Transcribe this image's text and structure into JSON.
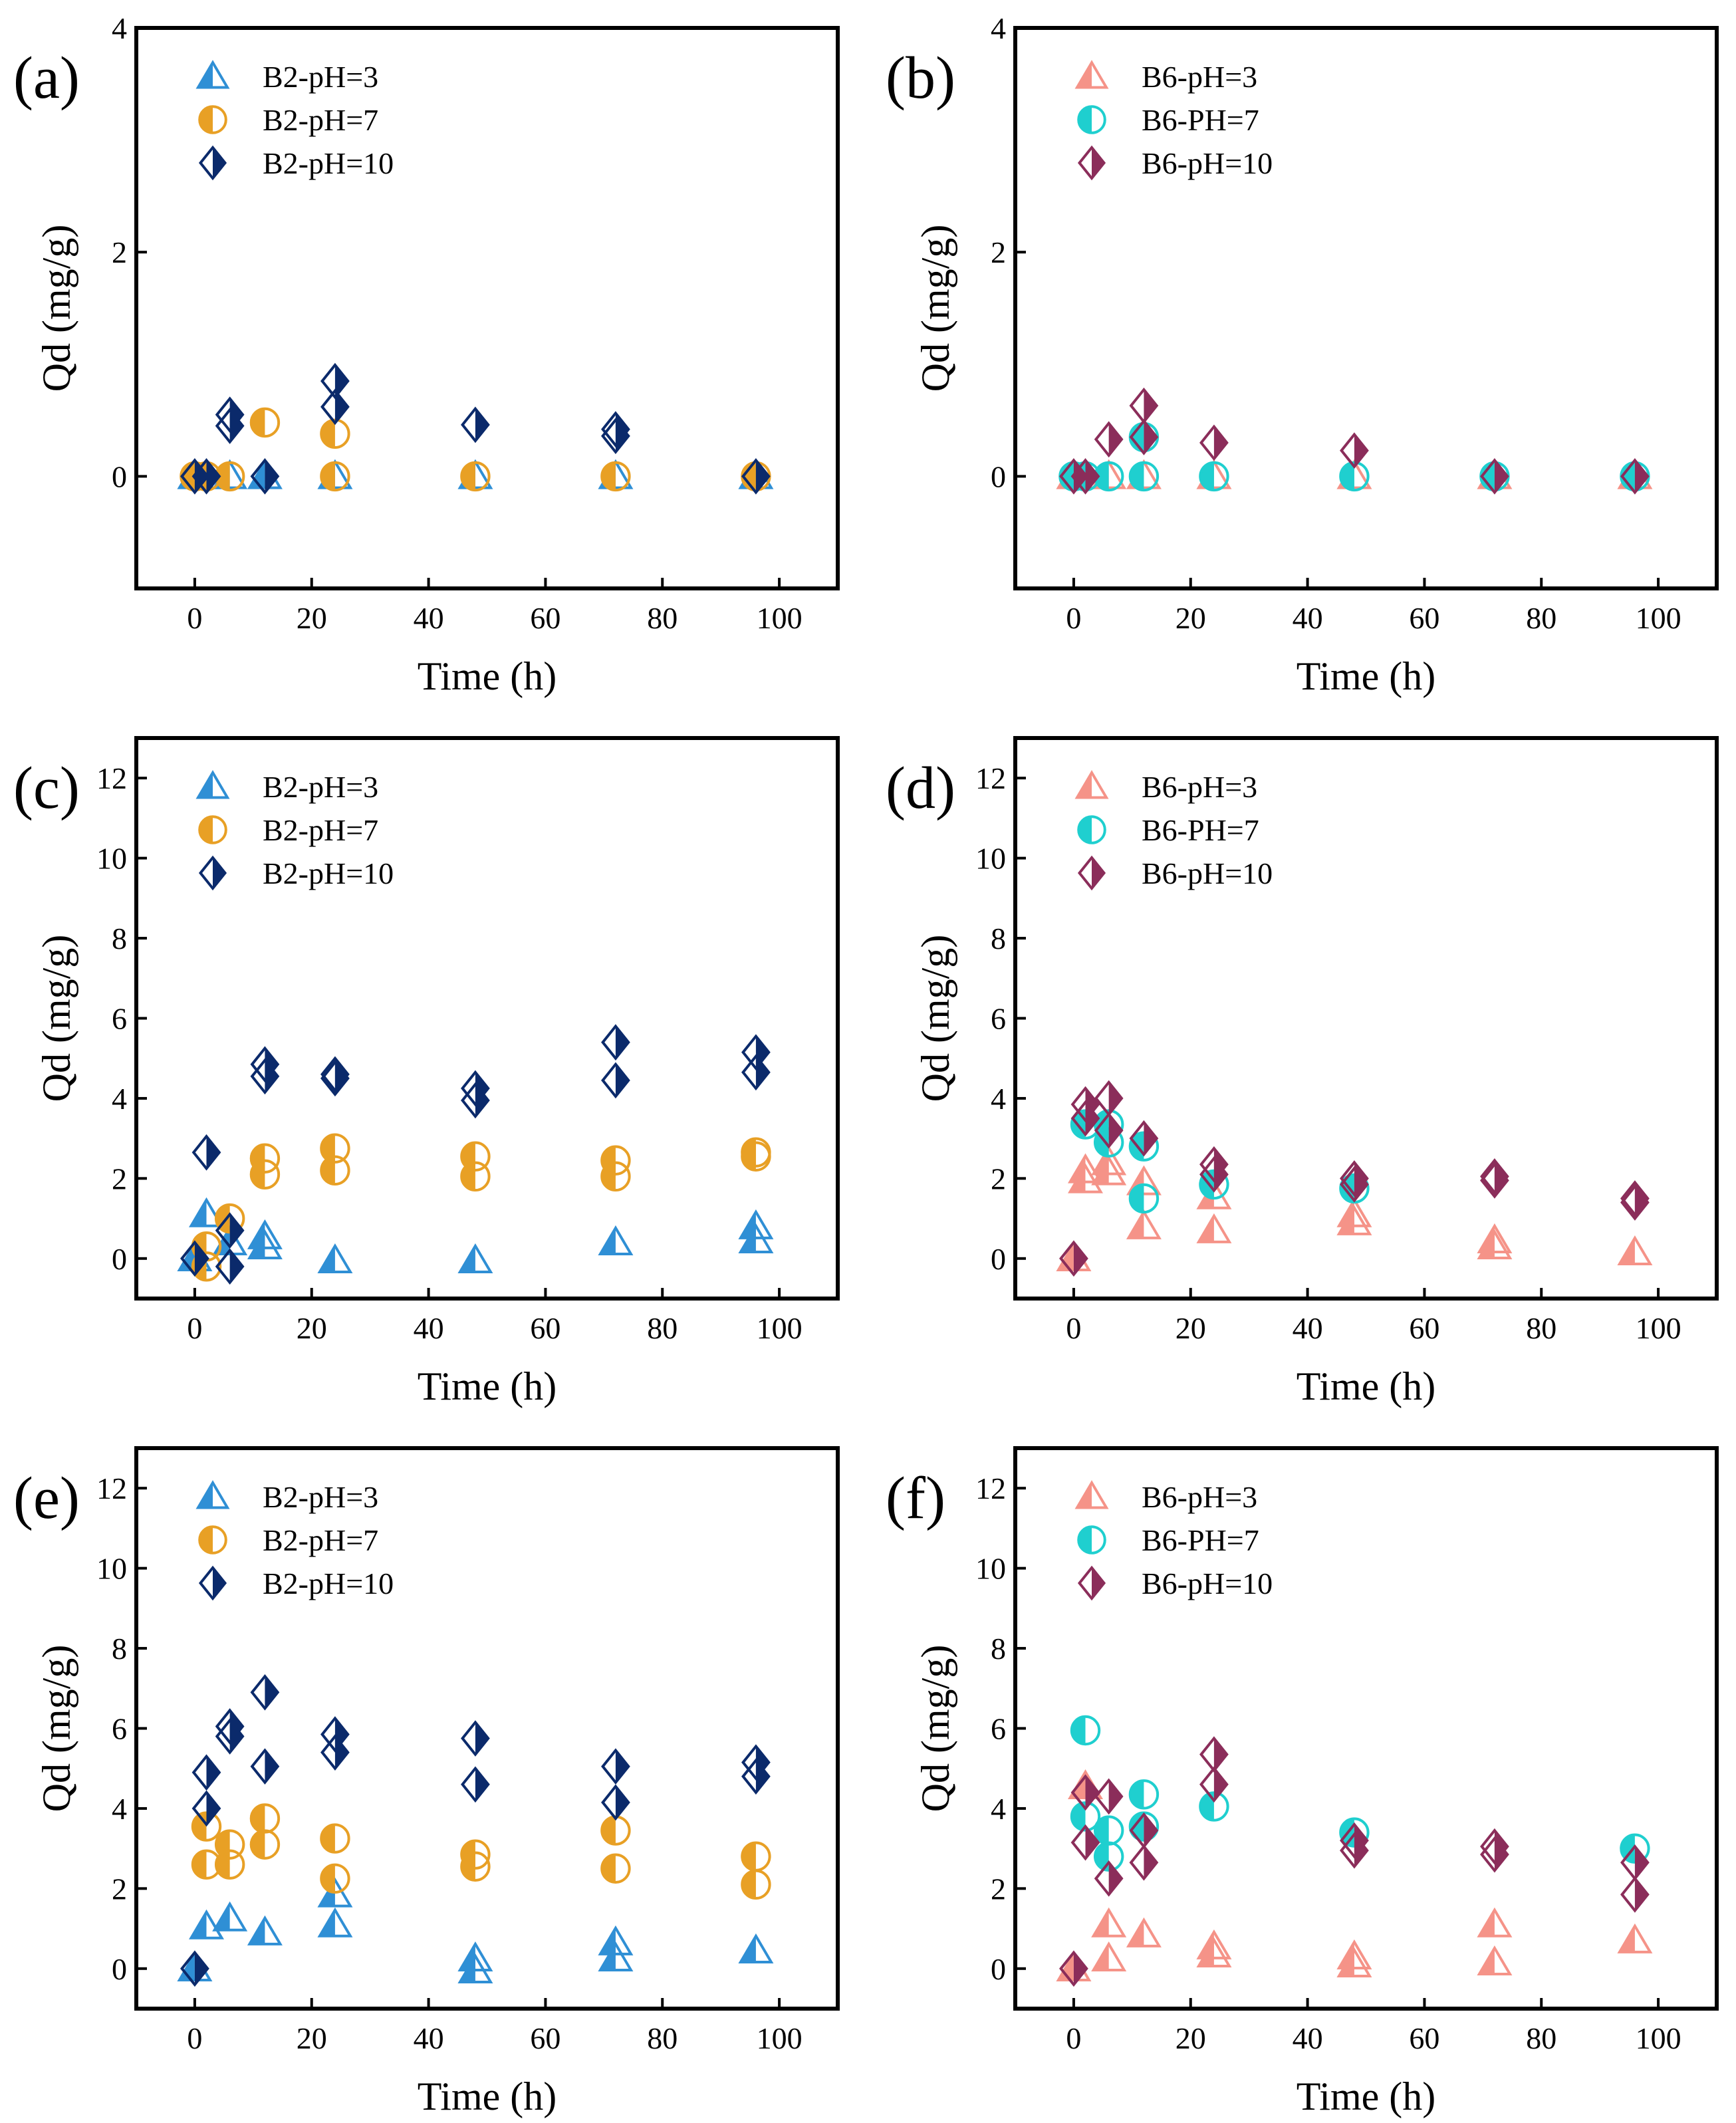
{
  "figure": {
    "description_free": true
  },
  "colors": {
    "b2_ph3": "#2F8FD5",
    "b2_ph7": "#E8A025",
    "b2_ph10": "#0B2A6B",
    "b6_ph3": "#F59388",
    "b6_ph7": "#1FCFCF",
    "b6_ph10": "#8B2D5A"
  },
  "chart_data": [
    {
      "type": "scatter",
      "panel_label": "(a)",
      "xlabel": "Time (h)",
      "ylabel": "Qd (mg/g)",
      "xlim": [
        -10,
        110
      ],
      "ylim": [
        -1,
        4
      ],
      "xticks": [
        0,
        20,
        40,
        60,
        80,
        100
      ],
      "yticks": [
        0,
        2,
        4
      ],
      "tick_labels_x": [
        "0",
        "20",
        "40",
        "60",
        "80",
        "100"
      ],
      "tick_labels_y": [
        "0",
        "2",
        "4"
      ],
      "series": [
        {
          "name": "B2-pH=3",
          "marker": "triangle",
          "color_key": "b2_ph3",
          "x": [
            0,
            2,
            6,
            12,
            24,
            48,
            72,
            96
          ],
          "y": [
            0,
            0,
            0,
            0,
            0,
            0,
            0,
            0
          ]
        },
        {
          "name": "B2-pH=7",
          "marker": "circle",
          "color_key": "b2_ph7",
          "x": [
            0,
            2,
            6,
            12,
            24,
            24,
            48,
            72,
            96
          ],
          "y": [
            0,
            0,
            0,
            0.48,
            0.38,
            0,
            0,
            0,
            0
          ]
        },
        {
          "name": "B2-pH=10",
          "marker": "diamond",
          "color_key": "b2_ph10",
          "x": [
            0,
            2,
            6,
            6,
            12,
            24,
            24,
            48,
            72,
            72,
            96
          ],
          "y": [
            0,
            0,
            0.55,
            0.45,
            0,
            0.85,
            0.62,
            0.46,
            0.42,
            0.36,
            0
          ]
        }
      ]
    },
    {
      "type": "scatter",
      "panel_label": "(b)",
      "xlabel": "Time (h)",
      "ylabel": "Qd (mg/g)",
      "xlim": [
        -10,
        110
      ],
      "ylim": [
        -1,
        4
      ],
      "xticks": [
        0,
        20,
        40,
        60,
        80,
        100
      ],
      "yticks": [
        0,
        2,
        4
      ],
      "tick_labels_x": [
        "0",
        "20",
        "40",
        "60",
        "80",
        "100"
      ],
      "tick_labels_y": [
        "0",
        "2",
        "4"
      ],
      "series": [
        {
          "name": "B6-pH=3",
          "marker": "triangle",
          "color_key": "b6_ph3",
          "x": [
            0,
            2,
            6,
            12,
            24,
            48,
            72,
            96
          ],
          "y": [
            0,
            0,
            0,
            0,
            0,
            0,
            0,
            0
          ]
        },
        {
          "name": "B6-PH=7",
          "marker": "circle",
          "color_key": "b6_ph7",
          "x": [
            0,
            2,
            6,
            12,
            12,
            24,
            48,
            72,
            96
          ],
          "y": [
            0,
            0,
            0,
            0.35,
            0,
            0,
            0,
            0,
            0
          ]
        },
        {
          "name": "B6-pH=10",
          "marker": "diamond",
          "color_key": "b6_ph10",
          "x": [
            0,
            2,
            6,
            12,
            12,
            24,
            48,
            72,
            96
          ],
          "y": [
            0,
            0,
            0.33,
            0.63,
            0.35,
            0.3,
            0.23,
            0,
            0
          ]
        }
      ]
    },
    {
      "type": "scatter",
      "panel_label": "(c)",
      "xlabel": "Time (h)",
      "ylabel": "Qd (mg/g)",
      "xlim": [
        -10,
        110
      ],
      "ylim": [
        -1,
        13
      ],
      "xticks": [
        0,
        20,
        40,
        60,
        80,
        100
      ],
      "yticks": [
        0,
        2,
        4,
        6,
        8,
        10,
        12
      ],
      "tick_labels_x": [
        "0",
        "20",
        "40",
        "60",
        "80",
        "100"
      ],
      "tick_labels_y": [
        "0",
        "2",
        "4",
        "6",
        "8",
        "10",
        "12"
      ],
      "series": [
        {
          "name": "B2-pH=3",
          "marker": "triangle",
          "color_key": "b2_ph3",
          "x": [
            0,
            2,
            6,
            12,
            12,
            24,
            48,
            72,
            96,
            96
          ],
          "y": [
            0,
            1.1,
            0.4,
            0.55,
            0.3,
            -0.05,
            -0.05,
            0.4,
            0.8,
            0.45
          ]
        },
        {
          "name": "B2-pH=7",
          "marker": "circle",
          "color_key": "b2_ph7",
          "x": [
            2,
            2,
            6,
            12,
            12,
            24,
            24,
            48,
            48,
            72,
            72,
            96,
            96
          ],
          "y": [
            0.3,
            -0.2,
            1.0,
            2.5,
            2.1,
            2.75,
            2.2,
            2.55,
            2.05,
            2.45,
            2.05,
            2.65,
            2.55
          ]
        },
        {
          "name": "B2-pH=10",
          "marker": "diamond",
          "color_key": "b2_ph10",
          "x": [
            0,
            2,
            6,
            6,
            12,
            12,
            24,
            24,
            48,
            48,
            72,
            72,
            96,
            96
          ],
          "y": [
            0,
            2.65,
            0.7,
            -0.2,
            4.85,
            4.55,
            4.6,
            4.5,
            4.25,
            3.95,
            5.4,
            4.45,
            5.15,
            4.65
          ]
        }
      ]
    },
    {
      "type": "scatter",
      "panel_label": "(d)",
      "xlabel": "Time (h)",
      "ylabel": "Qd (mg/g)",
      "xlim": [
        -10,
        110
      ],
      "ylim": [
        -1,
        13
      ],
      "xticks": [
        0,
        20,
        40,
        60,
        80,
        100
      ],
      "yticks": [
        0,
        2,
        4,
        6,
        8,
        10,
        12
      ],
      "tick_labels_x": [
        "0",
        "20",
        "40",
        "60",
        "80",
        "100"
      ],
      "tick_labels_y": [
        "0",
        "2",
        "4",
        "6",
        "8",
        "10",
        "12"
      ],
      "series": [
        {
          "name": "B6-pH=3",
          "marker": "triangle",
          "color_key": "b6_ph3",
          "x": [
            0,
            2,
            2,
            6,
            6,
            12,
            12,
            24,
            24,
            48,
            48,
            72,
            72,
            96
          ],
          "y": [
            0,
            2.2,
            1.95,
            2.4,
            2.15,
            1.9,
            0.8,
            1.55,
            0.7,
            1.1,
            0.9,
            0.45,
            0.3,
            0.15
          ]
        },
        {
          "name": "B6-PH=7",
          "marker": "circle",
          "color_key": "b6_ph7",
          "x": [
            2,
            6,
            6,
            12,
            12,
            24,
            48
          ],
          "y": [
            3.35,
            3.35,
            2.9,
            2.8,
            1.5,
            1.85,
            1.75
          ]
        },
        {
          "name": "B6-pH=10",
          "marker": "diamond",
          "color_key": "b6_ph10",
          "x": [
            0,
            2,
            2,
            6,
            6,
            12,
            24,
            24,
            48,
            48,
            72,
            72,
            96,
            96
          ],
          "y": [
            0,
            3.85,
            3.5,
            4.0,
            3.2,
            3.0,
            2.35,
            2.1,
            2.0,
            1.85,
            2.05,
            1.95,
            1.5,
            1.4
          ]
        }
      ]
    },
    {
      "type": "scatter",
      "panel_label": "(e)",
      "xlabel": "Time (h)",
      "ylabel": "Qd (mg/g)",
      "xlim": [
        -10,
        110
      ],
      "ylim": [
        -1,
        13
      ],
      "xticks": [
        0,
        20,
        40,
        60,
        80,
        100
      ],
      "yticks": [
        0,
        2,
        4,
        6,
        8,
        10,
        12
      ],
      "tick_labels_x": [
        "0",
        "20",
        "40",
        "60",
        "80",
        "100"
      ],
      "tick_labels_y": [
        "0",
        "2",
        "4",
        "6",
        "8",
        "10",
        "12"
      ],
      "series": [
        {
          "name": "B2-pH=3",
          "marker": "triangle",
          "color_key": "b2_ph3",
          "x": [
            0,
            2,
            6,
            12,
            24,
            24,
            48,
            48,
            72,
            72,
            96
          ],
          "y": [
            0,
            1.05,
            1.25,
            0.9,
            1.85,
            1.1,
            0.25,
            -0.05,
            0.65,
            0.25,
            0.45
          ]
        },
        {
          "name": "B2-pH=7",
          "marker": "circle",
          "color_key": "b2_ph7",
          "x": [
            2,
            2,
            6,
            6,
            12,
            12,
            24,
            24,
            48,
            48,
            72,
            72,
            96,
            96
          ],
          "y": [
            3.55,
            2.6,
            3.1,
            2.6,
            3.75,
            3.1,
            3.25,
            2.25,
            2.85,
            2.55,
            3.45,
            2.5,
            2.8,
            2.1
          ]
        },
        {
          "name": "B2-pH=10",
          "marker": "diamond",
          "color_key": "b2_ph10",
          "x": [
            0,
            2,
            2,
            6,
            6,
            12,
            12,
            24,
            24,
            48,
            48,
            72,
            72,
            96,
            96
          ],
          "y": [
            0,
            4.9,
            4.0,
            6.05,
            5.8,
            6.9,
            5.05,
            5.85,
            5.4,
            5.75,
            4.6,
            5.05,
            4.15,
            5.15,
            4.8
          ]
        }
      ]
    },
    {
      "type": "scatter",
      "panel_label": "(f)",
      "xlabel": "Time (h)",
      "ylabel": "Qd (mg/g)",
      "xlim": [
        -10,
        110
      ],
      "ylim": [
        -1,
        13
      ],
      "xticks": [
        0,
        20,
        40,
        60,
        80,
        100
      ],
      "yticks": [
        0,
        2,
        4,
        6,
        8,
        10,
        12
      ],
      "tick_labels_x": [
        "0",
        "20",
        "40",
        "60",
        "80",
        "100"
      ],
      "tick_labels_y": [
        "0",
        "2",
        "4",
        "6",
        "8",
        "10",
        "12"
      ],
      "series": [
        {
          "name": "B6-pH=3",
          "marker": "triangle",
          "color_key": "b6_ph3",
          "x": [
            0,
            2,
            6,
            6,
            12,
            24,
            24,
            48,
            48,
            72,
            72,
            96
          ],
          "y": [
            0,
            4.55,
            1.1,
            0.25,
            0.85,
            0.55,
            0.35,
            0.3,
            0.1,
            1.1,
            0.15,
            0.7
          ]
        },
        {
          "name": "B6-PH=7",
          "marker": "circle",
          "color_key": "b6_ph7",
          "x": [
            2,
            2,
            6,
            6,
            12,
            12,
            24,
            48,
            96
          ],
          "y": [
            5.95,
            3.8,
            3.45,
            2.8,
            4.35,
            3.55,
            4.05,
            3.4,
            3.0
          ]
        },
        {
          "name": "B6-pH=10",
          "marker": "diamond",
          "color_key": "b6_ph10",
          "x": [
            0,
            2,
            2,
            6,
            6,
            12,
            12,
            24,
            24,
            48,
            48,
            72,
            72,
            96,
            96
          ],
          "y": [
            0,
            4.4,
            3.15,
            4.3,
            2.25,
            3.45,
            2.65,
            5.35,
            4.6,
            3.2,
            2.95,
            3.05,
            2.85,
            2.65,
            1.85
          ]
        }
      ]
    }
  ]
}
